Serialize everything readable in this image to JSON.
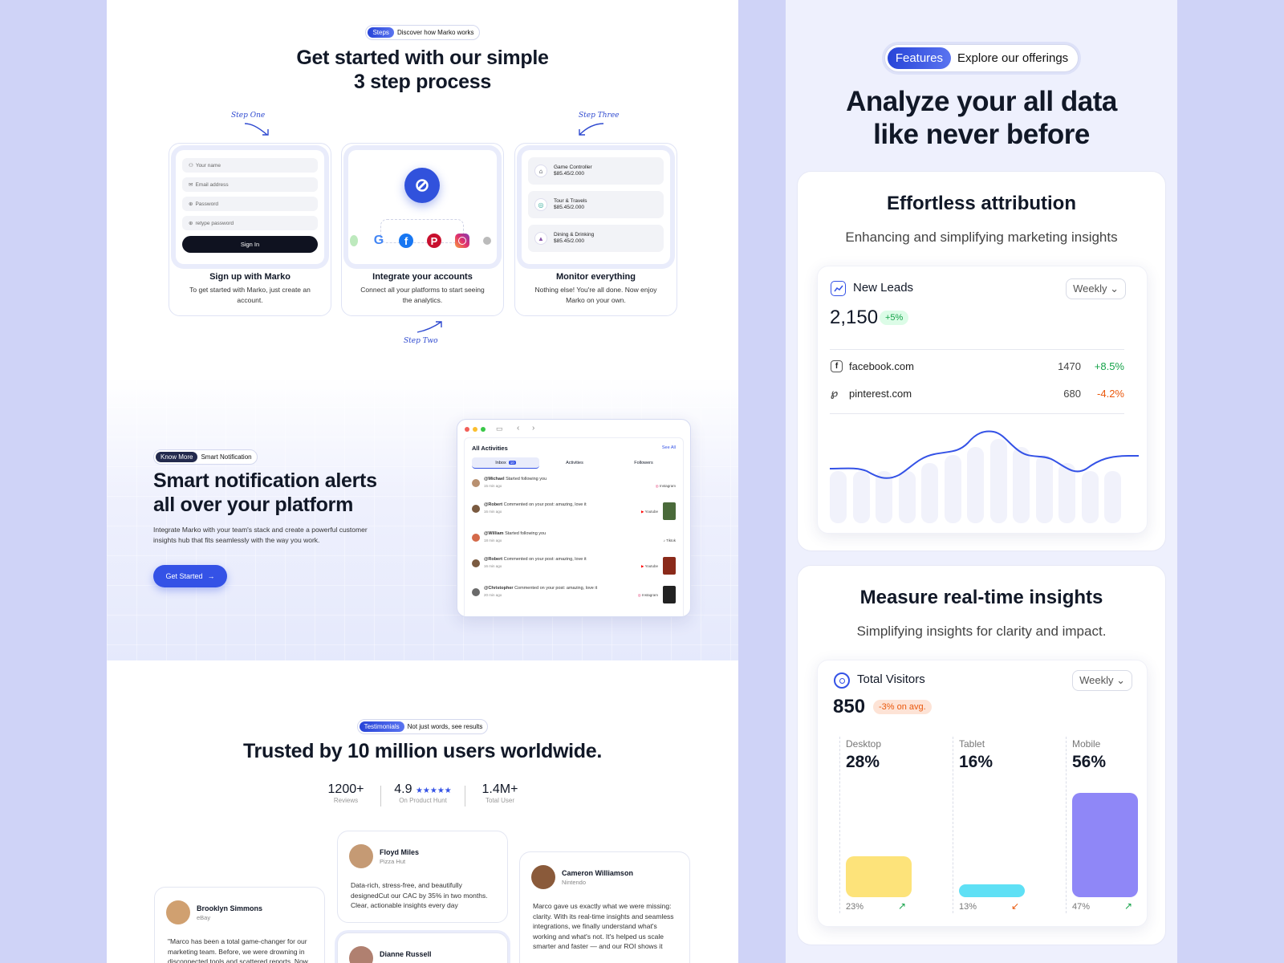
{
  "steps_section": {
    "tag": "Steps",
    "tag_text": "Discover how Marko works",
    "title_line1": "Get started with our simple",
    "title_line2": "3 step process",
    "label_one": "Step One",
    "label_two": "Step Two",
    "label_three": "Step Three",
    "signup_fields": [
      "Your name",
      "Email address",
      "Password",
      "retype password"
    ],
    "signin_label": "Sign In",
    "cards": [
      {
        "title": "Sign up with Marko",
        "desc": "To get started with Marko, just create an account."
      },
      {
        "title": "Integrate your accounts",
        "desc": "Connect all your platforms to start seeing the analytics."
      },
      {
        "title": "Monitor everything",
        "desc": "Nothing else! You're all done. Now enjoy Marko on your own."
      }
    ],
    "monitor_items": [
      {
        "name": "Game Controller",
        "value": "$85.45/2.000"
      },
      {
        "name": "Tour & Travels",
        "value": "$85.45/2.000"
      },
      {
        "name": "Dining & Drinking",
        "value": "$85.45/2.000"
      }
    ]
  },
  "notification_section": {
    "tag": "Know More",
    "tag_text": "Smart Notification",
    "title_line1": "Smart notification alerts",
    "title_line2": "all over your platform",
    "desc": "Integrate Marko with your team's stack and create a powerful customer insights hub that fits seamlessly with the way you work.",
    "cta": "Get Started",
    "window": {
      "title": "All Activities",
      "see_all": "See All",
      "tabs": [
        "Inbox",
        "Activities",
        "Followers"
      ],
      "inbox_count": "10",
      "activities": [
        {
          "user": "@Michael",
          "action": "Started following you",
          "time": "15 min ago",
          "source": "Instagram"
        },
        {
          "user": "@Robert",
          "action": "Commented on your post:  amazing, love it",
          "time": "16 min ago",
          "source": "Youtube"
        },
        {
          "user": "@William",
          "action": "Started following you",
          "time": "18 min ago",
          "source": "Tiktok"
        },
        {
          "user": "@Robert",
          "action": "Commented on your post:  amazing, love it",
          "time": "16 min ago",
          "source": "Youtube"
        },
        {
          "user": "@Christopher",
          "action": "Commented on your post:  amazing, love it",
          "time": "20 min ago",
          "source": "Instagram"
        }
      ]
    }
  },
  "testimonials_section": {
    "tag": "Testimonials",
    "tag_text": "Not just words, see results",
    "title": "Trusted by 10 million users worldwide.",
    "stats": [
      {
        "value": "1200+",
        "label": "Reviews"
      },
      {
        "value": "4.9",
        "label": "On Product Hunt",
        "stars": "★★★★★"
      },
      {
        "value": "1.4M+",
        "label": "Total User"
      }
    ],
    "cards": [
      {
        "name": "Floyd Miles",
        "company": "Pizza Hut",
        "text": "Data-rich, stress-free, and beautifully designedCut our CAC by 35% in two months. Clear, actionable insights every day"
      },
      {
        "name": "Cameron Williamson",
        "company": "Nintendo",
        "text": "Marco gave us exactly what we were missing: clarity. With its real-time insights and seamless integrations, we finally understand what's working and what's not. It's helped us scale smarter and faster — and our ROI shows it"
      },
      {
        "name": "Brooklyn Simmons",
        "company": "eBay",
        "text": "\"Marco has been a total game-changer for our marketing team. Before, we were drowning in disconnected tools and scattered reports. Now"
      },
      {
        "name": "Dianne Russell",
        "company": ""
      }
    ]
  },
  "features_section": {
    "tag": "Features",
    "tag_text": "Explore our offerings",
    "title_line1": "Analyze your all data",
    "title_line2": "like never before",
    "attribution": {
      "title": "Effortless attribution",
      "subtitle": "Enhancing and simplifying marketing insights",
      "widget_title": "New Leads",
      "period": "Weekly",
      "total": "2,150",
      "change": "+5%",
      "sources": [
        {
          "name": "facebook.com",
          "value": "1470",
          "change": "+8.5%"
        },
        {
          "name": "pinterest.com",
          "value": "680",
          "change": "-4.2%"
        }
      ]
    },
    "insights": {
      "title": "Measure real-time insights",
      "subtitle": "Simplifying insights for clarity and impact.",
      "widget_title": "Total Visitors",
      "period": "Weekly",
      "total": "850",
      "change": "-3% on avg.",
      "devices": [
        {
          "name": "Desktop",
          "share": "28%",
          "delta": "23%",
          "trend": "up",
          "color": "#fde37a"
        },
        {
          "name": "Tablet",
          "share": "16%",
          "delta": "13%",
          "trend": "down",
          "color": "#5fe0f5"
        },
        {
          "name": "Mobile",
          "share": "56%",
          "delta": "47%",
          "trend": "up",
          "color": "#8f87f7"
        }
      ]
    }
  },
  "colors": {
    "accent": "#3b55e6",
    "positive": "#16a34a",
    "negative": "#ea580c",
    "dark": "#0f1220"
  }
}
